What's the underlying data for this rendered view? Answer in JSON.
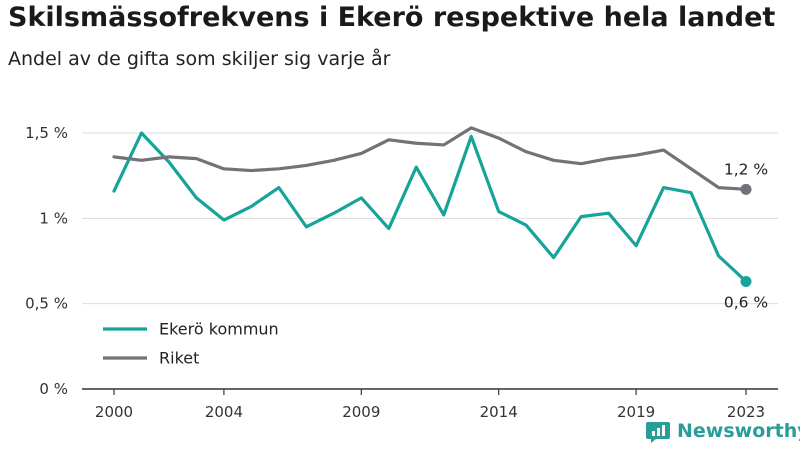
{
  "title": "Skilsmässofrekvens i Ekerö respektive hela landet",
  "subtitle": "Andel av de gifta som skiljer sig varje år",
  "brand": "Newsworthy",
  "colors": {
    "ekero": "#16a39a",
    "riket": "#727278",
    "grid": "#dddddd",
    "brand": "#2a9d9a"
  },
  "chart_data": {
    "type": "line",
    "x": [
      2000,
      2001,
      2002,
      2003,
      2004,
      2005,
      2006,
      2007,
      2008,
      2009,
      2010,
      2011,
      2012,
      2013,
      2014,
      2015,
      2016,
      2017,
      2018,
      2019,
      2020,
      2021,
      2022,
      2023
    ],
    "xticks": [
      2000,
      2004,
      2009,
      2014,
      2019,
      2023
    ],
    "xtick_labels": [
      "2000",
      "2004",
      "2009",
      "2014",
      "2019",
      "2023"
    ],
    "yticks": [
      0,
      0.5,
      1,
      1.5
    ],
    "ytick_labels": [
      "0 %",
      "0,5 %",
      "1 %",
      "1,5 %"
    ],
    "ylim": [
      0,
      1.5
    ],
    "xlim": [
      2000,
      2023
    ],
    "grid": true,
    "legend_position": "bottom-left",
    "series": [
      {
        "name": "Ekerö kommun",
        "color": "#16a39a",
        "values": [
          1.16,
          1.5,
          1.33,
          1.12,
          0.99,
          1.07,
          1.18,
          0.95,
          1.03,
          1.12,
          0.94,
          1.3,
          1.02,
          1.48,
          1.04,
          0.96,
          0.77,
          1.01,
          1.03,
          0.84,
          1.18,
          1.15,
          0.78,
          0.63
        ],
        "end_label": "0,6 %",
        "end_label_position": "below"
      },
      {
        "name": "Riket",
        "color": "#727278",
        "values": [
          1.36,
          1.34,
          1.36,
          1.35,
          1.29,
          1.28,
          1.29,
          1.31,
          1.34,
          1.38,
          1.46,
          1.44,
          1.43,
          1.53,
          1.47,
          1.39,
          1.34,
          1.32,
          1.35,
          1.37,
          1.4,
          1.29,
          1.18,
          1.17
        ],
        "end_label": "1,2 %",
        "end_label_position": "above"
      }
    ]
  }
}
